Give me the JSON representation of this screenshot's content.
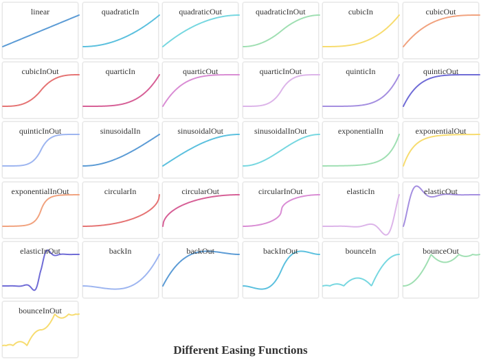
{
  "chart_data": {
    "type": "line",
    "title": "Different Easing Functions",
    "grid": false,
    "charts": [
      {
        "name": "linear",
        "color": "#5b9bd5"
      },
      {
        "name": "quadraticIn",
        "color": "#5bc0de"
      },
      {
        "name": "quadraticOut",
        "color": "#76d7e0"
      },
      {
        "name": "quadraticInOut",
        "color": "#9fdfb2"
      },
      {
        "name": "cubicIn",
        "color": "#f7dc6f"
      },
      {
        "name": "cubicOut",
        "color": "#f1a27e"
      },
      {
        "name": "cubicInOut",
        "color": "#e57373"
      },
      {
        "name": "quarticIn",
        "color": "#d65f96"
      },
      {
        "name": "quarticOut",
        "color": "#d98cd4"
      },
      {
        "name": "quarticInOut",
        "color": "#dcb4e9"
      },
      {
        "name": "quinticIn",
        "color": "#a48ee0"
      },
      {
        "name": "quinticOut",
        "color": "#6f6bd6"
      },
      {
        "name": "quinticInOut",
        "color": "#9db5f0"
      },
      {
        "name": "sinusoidalIn",
        "color": "#5b9bd5"
      },
      {
        "name": "sinusoidalOut",
        "color": "#5bc0de"
      },
      {
        "name": "sinusoidalInOut",
        "color": "#76d7e0"
      },
      {
        "name": "exponentialIn",
        "color": "#9fdfb2"
      },
      {
        "name": "exponentialOut",
        "color": "#f7dc6f"
      },
      {
        "name": "exponentialInOut",
        "color": "#f1a27e"
      },
      {
        "name": "circularIn",
        "color": "#e57373"
      },
      {
        "name": "circularOut",
        "color": "#d65f96"
      },
      {
        "name": "circularInOut",
        "color": "#d98cd4"
      },
      {
        "name": "elasticIn",
        "color": "#dcb4e9"
      },
      {
        "name": "elasticOut",
        "color": "#a48ee0"
      },
      {
        "name": "elasticInOut",
        "color": "#6f6bd6"
      },
      {
        "name": "backIn",
        "color": "#9db5f0"
      },
      {
        "name": "backOut",
        "color": "#5b9bd5"
      },
      {
        "name": "backInOut",
        "color": "#5bc0de"
      },
      {
        "name": "bounceIn",
        "color": "#76d7e0"
      },
      {
        "name": "bounceOut",
        "color": "#9fdfb2"
      },
      {
        "name": "bounceInOut",
        "color": "#f7dc6f"
      }
    ]
  }
}
